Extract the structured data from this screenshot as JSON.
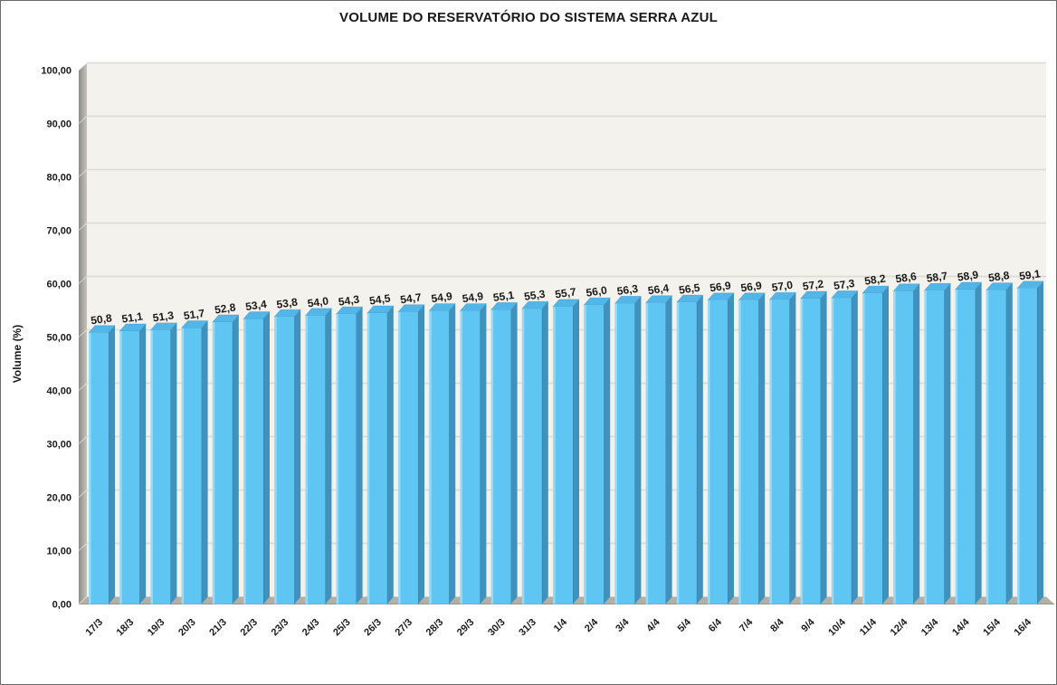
{
  "window": {
    "background": "#FFFFFF",
    "border_color": "#6B6B6B"
  },
  "chart_data": {
    "type": "bar",
    "style": "3d-column",
    "title": "VOLUME DO RESERVATÓRIO DO SISTEMA SERRA AZUL",
    "xlabel": "",
    "ylabel": "Volume (%)",
    "ylim": [
      0,
      100
    ],
    "ytick_step": 10,
    "ytick_labels": [
      "0,00",
      "10,00",
      "20,00",
      "30,00",
      "40,00",
      "50,00",
      "60,00",
      "70,00",
      "80,00",
      "90,00",
      "100,00"
    ],
    "grid": true,
    "legend": false,
    "categories": [
      "17/3",
      "18/3",
      "19/3",
      "20/3",
      "21/3",
      "22/3",
      "23/3",
      "24/3",
      "25/3",
      "26/3",
      "27/3",
      "28/3",
      "29/3",
      "30/3",
      "31/3",
      "1/4",
      "2/4",
      "3/4",
      "4/4",
      "5/4",
      "6/4",
      "7/4",
      "8/4",
      "9/4",
      "10/4",
      "11/4",
      "12/4",
      "13/4",
      "14/4",
      "15/4",
      "16/4"
    ],
    "values": [
      50.8,
      51.1,
      51.3,
      51.7,
      52.8,
      53.4,
      53.8,
      54.0,
      54.3,
      54.5,
      54.7,
      54.9,
      54.9,
      55.1,
      55.3,
      55.7,
      56.0,
      56.3,
      56.4,
      56.5,
      56.9,
      56.9,
      57.0,
      57.2,
      57.3,
      58.2,
      58.6,
      58.7,
      58.9,
      58.8,
      59.1
    ],
    "value_labels": [
      "50,8",
      "51,1",
      "51,3",
      "51,7",
      "52,8",
      "53,4",
      "53,8",
      "54,0",
      "54,3",
      "54,5",
      "54,7",
      "54,9",
      "54,9",
      "55,1",
      "55,3",
      "55,7",
      "56,0",
      "56,3",
      "56,4",
      "56,5",
      "56,9",
      "56,9",
      "57,0",
      "57,2",
      "57,3",
      "58,2",
      "58,6",
      "58,7",
      "58,9",
      "58,8",
      "59,1"
    ],
    "colors": {
      "bar_front": "#5FC6F4",
      "bar_top": "#52B7E8",
      "bar_side": "#4191BD",
      "bar_edge": "#2E7FA8",
      "plot_wall": "#F4F2EC",
      "gridline": "#DEDBD5",
      "side_wall_dark": "#8E8C85",
      "side_wall_light": "#C6C3BC",
      "floor": "#B2AFA7",
      "floor_edge": "#98958D",
      "text": "#1A1A1A"
    }
  }
}
